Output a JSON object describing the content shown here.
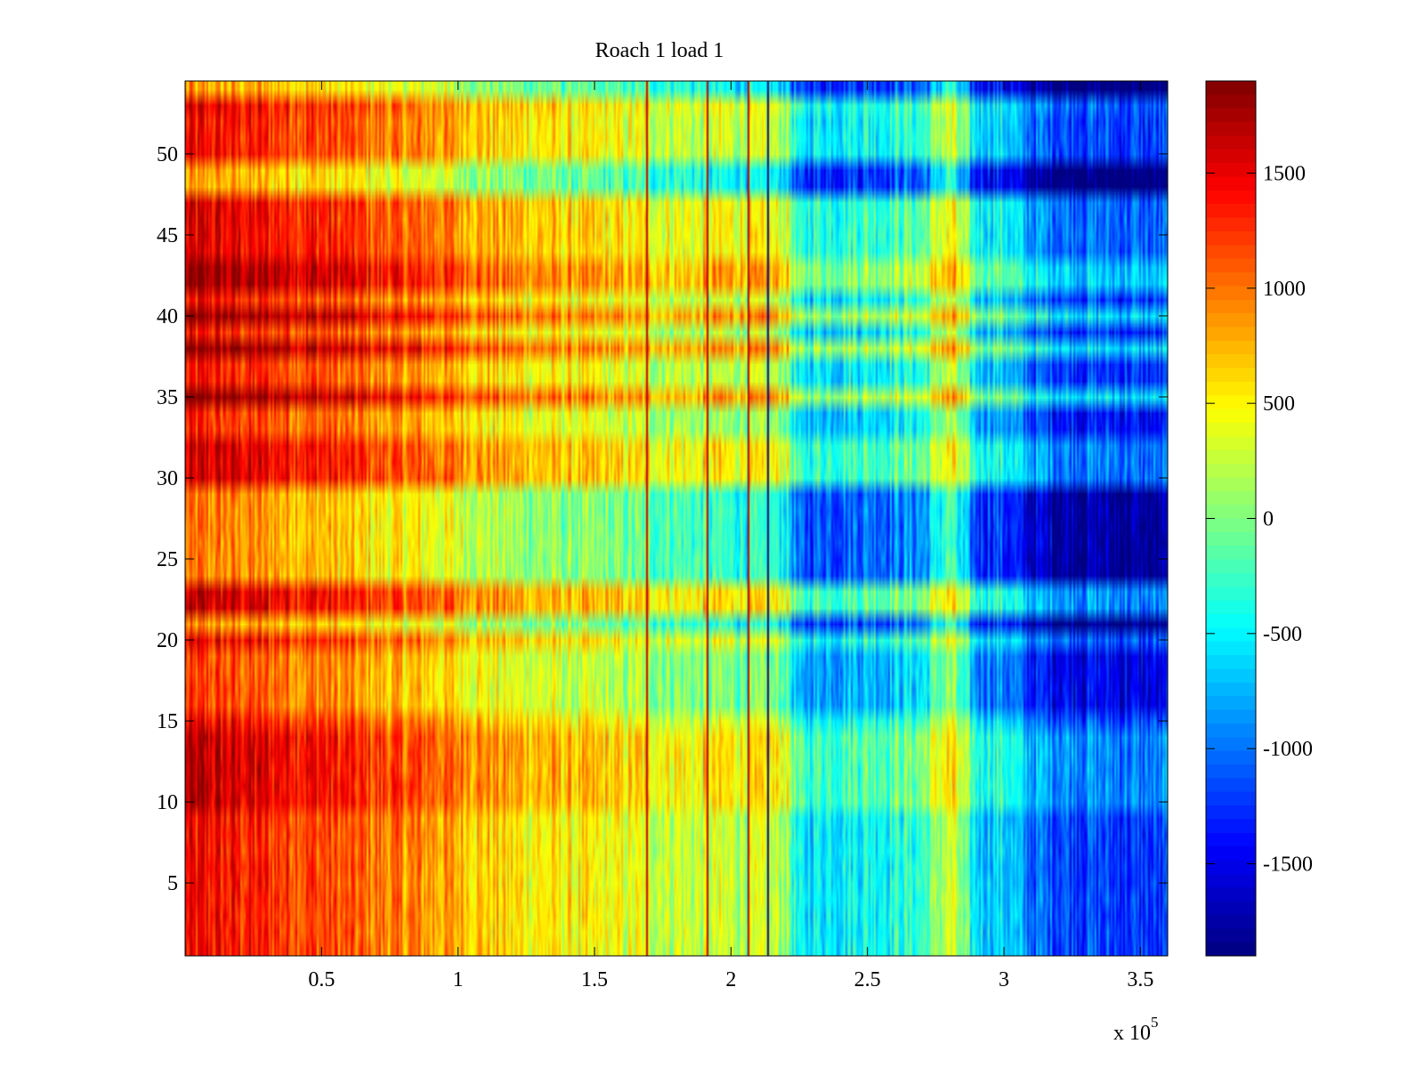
{
  "chart_data": {
    "type": "heatmap",
    "title": "Roach 1 load 1",
    "xlabel": "",
    "ylabel": "",
    "xlim": [
      0,
      360000
    ],
    "ylim": [
      0.5,
      54.5
    ],
    "x_tick_labels": [
      "0.5",
      "1",
      "1.5",
      "2",
      "2.5",
      "3",
      "3.5"
    ],
    "x_tick_values": [
      50000,
      100000,
      150000,
      200000,
      250000,
      300000,
      350000
    ],
    "x_multiplier_label": "x 10",
    "x_multiplier_exponent": "5",
    "y_tick_labels": [
      "5",
      "10",
      "15",
      "20",
      "25",
      "30",
      "35",
      "40",
      "45",
      "50"
    ],
    "y_tick_values": [
      5,
      10,
      15,
      20,
      25,
      30,
      35,
      40,
      45,
      50
    ],
    "colormap": "jet",
    "colorbar": {
      "clim": [
        -1900,
        1900
      ],
      "tick_labels": [
        "1500",
        "1000",
        "500",
        "0",
        "-500",
        "-1000",
        "-1500"
      ],
      "tick_values": [
        1500,
        1000,
        500,
        0,
        -500,
        -1000,
        -1500
      ]
    },
    "grid": false,
    "rows": 54,
    "column_segments_x": [
      0,
      10000,
      20000,
      30000,
      40000,
      50000,
      60000,
      70000,
      80000,
      90000,
      100000,
      110000,
      120000,
      130000,
      140000,
      150000,
      160000,
      170000,
      180000,
      190000,
      200000,
      210000,
      220000,
      225000,
      230000,
      240000,
      250000,
      260000,
      270000,
      280000,
      290000,
      300000,
      310000,
      320000,
      330000,
      340000,
      350000,
      360000
    ],
    "column_trend_values": [
      1150,
      1150,
      1100,
      1050,
      1000,
      950,
      850,
      750,
      700,
      650,
      550,
      450,
      350,
      300,
      250,
      200,
      150,
      100,
      50,
      0,
      -50,
      -100,
      -100,
      -900,
      -800,
      -750,
      -700,
      -650,
      -600,
      100,
      -900,
      -900,
      -1300,
      -1400,
      -1450,
      -1500,
      -1550
    ],
    "row_offsets": [
      {
        "rows": [
          1,
          2,
          3,
          4,
          5,
          6,
          7,
          8,
          9
        ],
        "offset": 250
      },
      {
        "rows": [
          10,
          11,
          12,
          13,
          14
        ],
        "offset": 500
      },
      {
        "rows": [
          15
        ],
        "offset": 300
      },
      {
        "rows": [
          16,
          17,
          18,
          19
        ],
        "offset": 0
      },
      {
        "rows": [
          20
        ],
        "offset": 350
      },
      {
        "rows": [
          21
        ],
        "offset": -350
      },
      {
        "rows": [
          22,
          23
        ],
        "offset": 500
      },
      {
        "rows": [
          24,
          25,
          26,
          27,
          28,
          29
        ],
        "offset": -250
      },
      {
        "rows": [
          30,
          31,
          32
        ],
        "offset": 450
      },
      {
        "rows": [
          33,
          34
        ],
        "offset": 100
      },
      {
        "rows": [
          35
        ],
        "offset": 800
      },
      {
        "rows": [
          36,
          37
        ],
        "offset": 200
      },
      {
        "rows": [
          38
        ],
        "offset": 800
      },
      {
        "rows": [
          39
        ],
        "offset": 150
      },
      {
        "rows": [
          40
        ],
        "offset": 800
      },
      {
        "rows": [
          41
        ],
        "offset": 200
      },
      {
        "rows": [
          42,
          43
        ],
        "offset": 700
      },
      {
        "rows": [
          44,
          45,
          46,
          47
        ],
        "offset": 400
      },
      {
        "rows": [
          48,
          49
        ],
        "offset": -400
      },
      {
        "rows": [
          50,
          51,
          52
        ],
        "offset": 250
      },
      {
        "rows": [
          53
        ],
        "offset": 350
      },
      {
        "rows": [
          54
        ],
        "offset": -400
      }
    ],
    "dark_vertical_lines_x": [
      213000,
      206000,
      169000,
      191000
    ]
  }
}
